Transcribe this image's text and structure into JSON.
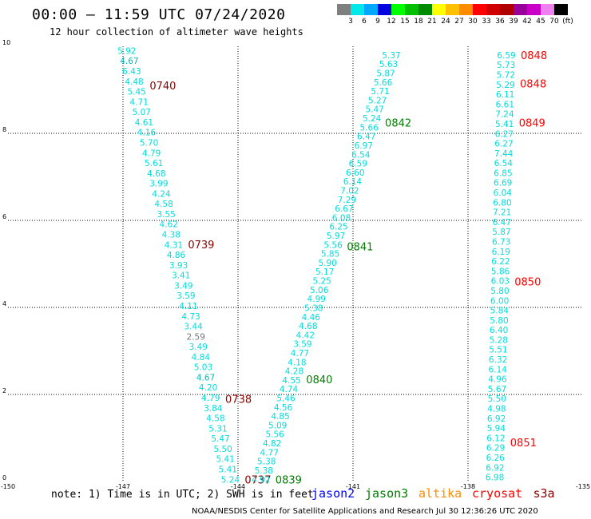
{
  "header": {
    "title": "00:00 – 11:59 UTC 07/24/2020",
    "subtitle": "12 hour collection of altimeter wave heights"
  },
  "colorbar": {
    "colors": [
      "#7f7f7f",
      "#00e8e8",
      "#00a8ff",
      "#0000e0",
      "#00ff00",
      "#00c000",
      "#008c00",
      "#ffff00",
      "#ffc000",
      "#ff8c00",
      "#ff0000",
      "#d00000",
      "#b00000",
      "#990099",
      "#c800c8",
      "#f080f0",
      "#000000"
    ],
    "labels": [
      "3",
      "6",
      "9",
      "12",
      "15",
      "18",
      "21",
      "24",
      "27",
      "30",
      "33",
      "36",
      "39",
      "42",
      "45",
      "70",
      "(ft)"
    ]
  },
  "chart_data": {
    "type": "scatter",
    "xlim": [
      -150,
      -135
    ],
    "ylim": [
      0,
      10
    ],
    "x_ticks": [
      "-150",
      "-147",
      "-144",
      "-141",
      "-138",
      "-135"
    ],
    "y_ticks": [
      "0",
      "2",
      "4",
      "6",
      "8",
      "10"
    ],
    "grid": true,
    "tracks": [
      {
        "name": "track-1",
        "color": "#00dddd",
        "start": [
          -146.9,
          9.9
        ],
        "end": [
          -144.2,
          0.05
        ],
        "values": [
          "5.92",
          "4.67",
          "6.43",
          "4.48",
          "5.45",
          "4.71",
          "5.07",
          "4.61",
          "4.16",
          "5.70",
          "4.79",
          "5.61",
          "4.68",
          "3.99",
          "4.24",
          "4.58",
          "3.55",
          "4.62",
          "4.38",
          "4.31",
          "4.86",
          "3.93",
          "3.41",
          "3.49",
          "3.59",
          "4.11",
          "4.73",
          "3.44",
          "2.59",
          "3.49",
          "4.84",
          "5.03",
          "4.67",
          "4.20",
          "4.79",
          "3.84",
          "4.58",
          "5.31",
          "5.47",
          "5.50",
          "5.41",
          "5.41",
          "5.24"
        ],
        "value_colors": {
          "4.67": "#00bbbb",
          "2.59": "#777777"
        },
        "times": [
          {
            "label": "0740",
            "y": 9.1
          },
          {
            "label": "0739",
            "y": 5.45
          },
          {
            "label": "0738",
            "y": 1.9
          },
          {
            "label": "0737",
            "y": 0.05
          }
        ]
      },
      {
        "name": "track-2",
        "color": "#00dddd",
        "start": [
          -140.0,
          9.8
        ],
        "end": [
          -143.4,
          0.05
        ],
        "values": [
          "5.37",
          "5.63",
          "5.87",
          "5.66",
          "5.71",
          "5.27",
          "5.47",
          "5.24",
          "5.66",
          "6.47",
          "6.97",
          "6.54",
          "6.59",
          "6.60",
          "6.14",
          "7.02",
          "7.29",
          "6.67",
          "6.08",
          "6.25",
          "5.97",
          "5.56",
          "5.85",
          "5.90",
          "5.17",
          "5.25",
          "5.06",
          "4.99",
          "5.38",
          "4.46",
          "4.68",
          "4.42",
          "3.59",
          "4.77",
          "4.18",
          "4.28",
          "4.55",
          "4.74",
          "5.46",
          "4.56",
          "4.85",
          "5.09",
          "5.56",
          "4.82",
          "4.77",
          "5.38",
          "5.38",
          "4.92"
        ],
        "value_colors": {},
        "times": [
          {
            "label": "0842",
            "y": 8.25
          },
          {
            "label": "0841",
            "y": 5.4
          },
          {
            "label": "0840",
            "y": 2.35
          },
          {
            "label": "0839",
            "y": 0.05
          }
        ]
      },
      {
        "name": "track-3",
        "color": "#00dddd",
        "start": [
          -137.0,
          9.8
        ],
        "end": [
          -137.3,
          0.1
        ],
        "values": [
          "6.59",
          "5.73",
          "5.72",
          "5.29",
          "6.11",
          "6.61",
          "7.24",
          "5.41",
          "6.27",
          "6.27",
          "7.44",
          "6.54",
          "6.85",
          "6.69",
          "6.04",
          "6.80",
          "7.21",
          "6.47",
          "5.87",
          "6.73",
          "6.19",
          "6.22",
          "5.86",
          "6.03",
          "5.80",
          "6.00",
          "5.84",
          "5.80",
          "6.40",
          "5.28",
          "5.51",
          "6.32",
          "6.14",
          "4.96",
          "5.67",
          "5.50",
          "4.98",
          "6.92",
          "5.94",
          "6.12",
          "6.29",
          "6.26",
          "6.92",
          "6.98"
        ],
        "value_colors": {},
        "times": [
          {
            "label": "0848",
            "y": 9.8
          },
          {
            "label": "0848",
            "y": 9.15
          },
          {
            "label": "0849",
            "y": 8.25
          },
          {
            "label": "0850",
            "y": 4.6
          },
          {
            "label": "0851",
            "y": 0.9
          }
        ]
      }
    ]
  },
  "time_label_colors": {
    "track-1": "#8b0000",
    "track-2": "#008000",
    "track-3": "#ff0000"
  },
  "note": "note: 1) Time is in UTC; 2) SWH is in feet",
  "legend": [
    {
      "label": "jason2",
      "color": "#0000ff"
    },
    {
      "label": "jason3",
      "color": "#008000"
    },
    {
      "label": "altika",
      "color": "#ff8c00"
    },
    {
      "label": "cryosat",
      "color": "#ff0000"
    },
    {
      "label": "s3a",
      "color": "#8b0000"
    }
  ],
  "footer": "NOAA/NESDIS Center for Satellite Applications and Research   Jul 30 12:36:26 UTC 2020"
}
